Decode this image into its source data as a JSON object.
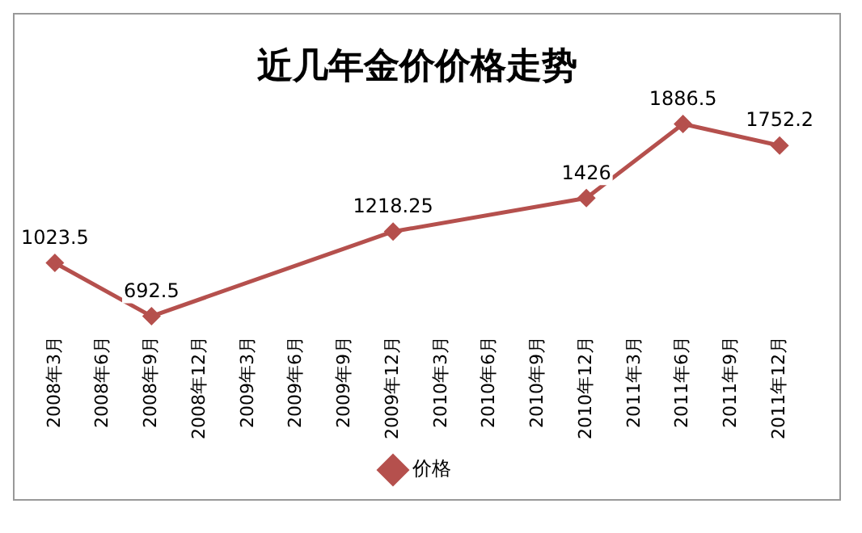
{
  "chart_data": {
    "type": "line",
    "title": "近几年金价价格走势",
    "categories": [
      "2008年3月",
      "2008年6月",
      "2008年9月",
      "2008年12月",
      "2009年3月",
      "2009年6月",
      "2009年9月",
      "2009年12月",
      "2010年3月",
      "2010年6月",
      "2010年9月",
      "2010年12月",
      "2011年3月",
      "2011年6月",
      "2011年9月",
      "2011年12月"
    ],
    "series": [
      {
        "name": "价格",
        "color": "#b5504d",
        "values": [
          1023.5,
          null,
          692.5,
          null,
          null,
          null,
          null,
          1218.25,
          null,
          null,
          null,
          1426,
          null,
          1886.5,
          null,
          1752.2
        ]
      }
    ],
    "data_labels": true,
    "legend": "bottom",
    "marker": "diamond",
    "line_style": "solid",
    "grid": false
  }
}
